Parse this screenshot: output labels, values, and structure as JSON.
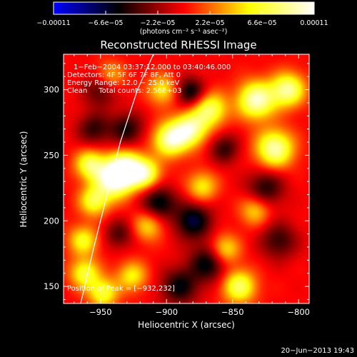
{
  "chart_data": {
    "type": "heatmap",
    "title": "Reconstructed RHESSI Image",
    "xlabel": "Heliocentric X (arcsec)",
    "ylabel": "Heliocentric Y (arcsec)",
    "xlim": [
      -978,
      -792
    ],
    "ylim": [
      137,
      327
    ],
    "xticks": [
      -950,
      -900,
      -850,
      -800
    ],
    "xtick_labels": [
      "−950",
      "−900",
      "−850",
      "−800"
    ],
    "yticks": [
      150,
      200,
      250,
      300
    ],
    "ytick_labels": [
      "150",
      "200",
      "250",
      "300"
    ],
    "colorbar": {
      "range": [
        -0.00011,
        0.00011
      ],
      "ticks": [
        -0.00011,
        -6.6e-05,
        -2.2e-05,
        2.2e-05,
        6.6e-05,
        0.00011
      ],
      "tick_labels": [
        "−0.00011",
        "−6.6e−05",
        "−2.2e−05",
        "2.2e−05",
        "6.6e−05",
        "0.00011"
      ],
      "unit_label": "(photons cm⁻² s⁻¹ asec⁻²)",
      "colormap": [
        "#0000ff",
        "#000000",
        "#ff0000",
        "#ffff00",
        "#ffffff"
      ]
    },
    "annotations": [
      "1−Feb−2004 03:37:12.000 to 03:40:46.000",
      "Detectors: 4F 5F 6F 7F 8F, Att 0",
      "Energy Range: 12.0 − 25.0 keV",
      "Clean     Total counts: 2.56E+03"
    ],
    "peak_label": "Position of Peak = [−932,232]",
    "peak_position": [
      -932,
      232
    ],
    "limb_curve": {
      "x": [
        -965,
        -955,
        -945,
        -935,
        -922,
        -910
      ],
      "y": [
        137,
        180,
        220,
        260,
        300,
        327
      ]
    },
    "sources": [
      {
        "x": -940,
        "y": 232,
        "intensity": 1.0,
        "sigma": 10
      },
      {
        "x": -930,
        "y": 240,
        "intensity": 0.85,
        "sigma": 9
      },
      {
        "x": -916,
        "y": 236,
        "intensity": 0.7,
        "sigma": 8
      },
      {
        "x": -897,
        "y": 262,
        "intensity": 0.85,
        "sigma": 9
      },
      {
        "x": -882,
        "y": 270,
        "intensity": 0.8,
        "sigma": 9
      },
      {
        "x": -867,
        "y": 285,
        "intensity": 0.7,
        "sigma": 9
      },
      {
        "x": -832,
        "y": 292,
        "intensity": 0.9,
        "sigma": 10
      },
      {
        "x": -818,
        "y": 255,
        "intensity": 0.85,
        "sigma": 10
      },
      {
        "x": -808,
        "y": 300,
        "intensity": 0.8,
        "sigma": 9
      },
      {
        "x": -958,
        "y": 243,
        "intensity": 0.65,
        "sigma": 8
      },
      {
        "x": -955,
        "y": 215,
        "intensity": 0.6,
        "sigma": 8
      },
      {
        "x": -963,
        "y": 185,
        "intensity": 0.55,
        "sigma": 8
      },
      {
        "x": -962,
        "y": 160,
        "intensity": 0.6,
        "sigma": 8
      },
      {
        "x": -948,
        "y": 145,
        "intensity": 0.6,
        "sigma": 8
      },
      {
        "x": -926,
        "y": 158,
        "intensity": 0.5,
        "sigma": 8
      },
      {
        "x": -873,
        "y": 226,
        "intensity": 0.5,
        "sigma": 8
      },
      {
        "x": -856,
        "y": 178,
        "intensity": 0.55,
        "sigma": 8
      },
      {
        "x": -845,
        "y": 150,
        "intensity": 0.7,
        "sigma": 9
      },
      {
        "x": -833,
        "y": 208,
        "intensity": 0.45,
        "sigma": 8
      },
      {
        "x": -914,
        "y": 196,
        "intensity": 0.45,
        "sigma": 8
      },
      {
        "x": -903,
        "y": 300,
        "intensity": 0.5,
        "sigma": 8
      },
      {
        "x": -943,
        "y": 310,
        "intensity": 0.4,
        "sigma": 8
      },
      {
        "x": -906,
        "y": 214,
        "intensity": -0.55,
        "sigma": 9
      },
      {
        "x": -880,
        "y": 200,
        "intensity": -0.6,
        "sigma": 10
      },
      {
        "x": -868,
        "y": 168,
        "intensity": -0.55,
        "sigma": 10
      },
      {
        "x": -890,
        "y": 150,
        "intensity": -0.5,
        "sigma": 10
      },
      {
        "x": -882,
        "y": 298,
        "intensity": -0.55,
        "sigma": 8
      },
      {
        "x": -825,
        "y": 225,
        "intensity": -0.45,
        "sigma": 10
      },
      {
        "x": -815,
        "y": 185,
        "intensity": -0.4,
        "sigma": 10
      },
      {
        "x": -930,
        "y": 270,
        "intensity": -0.45,
        "sigma": 9
      },
      {
        "x": -955,
        "y": 270,
        "intensity": -0.4,
        "sigma": 9
      },
      {
        "x": -950,
        "y": 300,
        "intensity": -0.4,
        "sigma": 9
      },
      {
        "x": -856,
        "y": 255,
        "intensity": -0.4,
        "sigma": 8
      },
      {
        "x": -936,
        "y": 190,
        "intensity": -0.35,
        "sigma": 8
      }
    ]
  },
  "footer": {
    "timestamp": "20−Jun−2013 19:43"
  },
  "colors": {
    "background": "#000000",
    "foreground": "#ffffff"
  }
}
